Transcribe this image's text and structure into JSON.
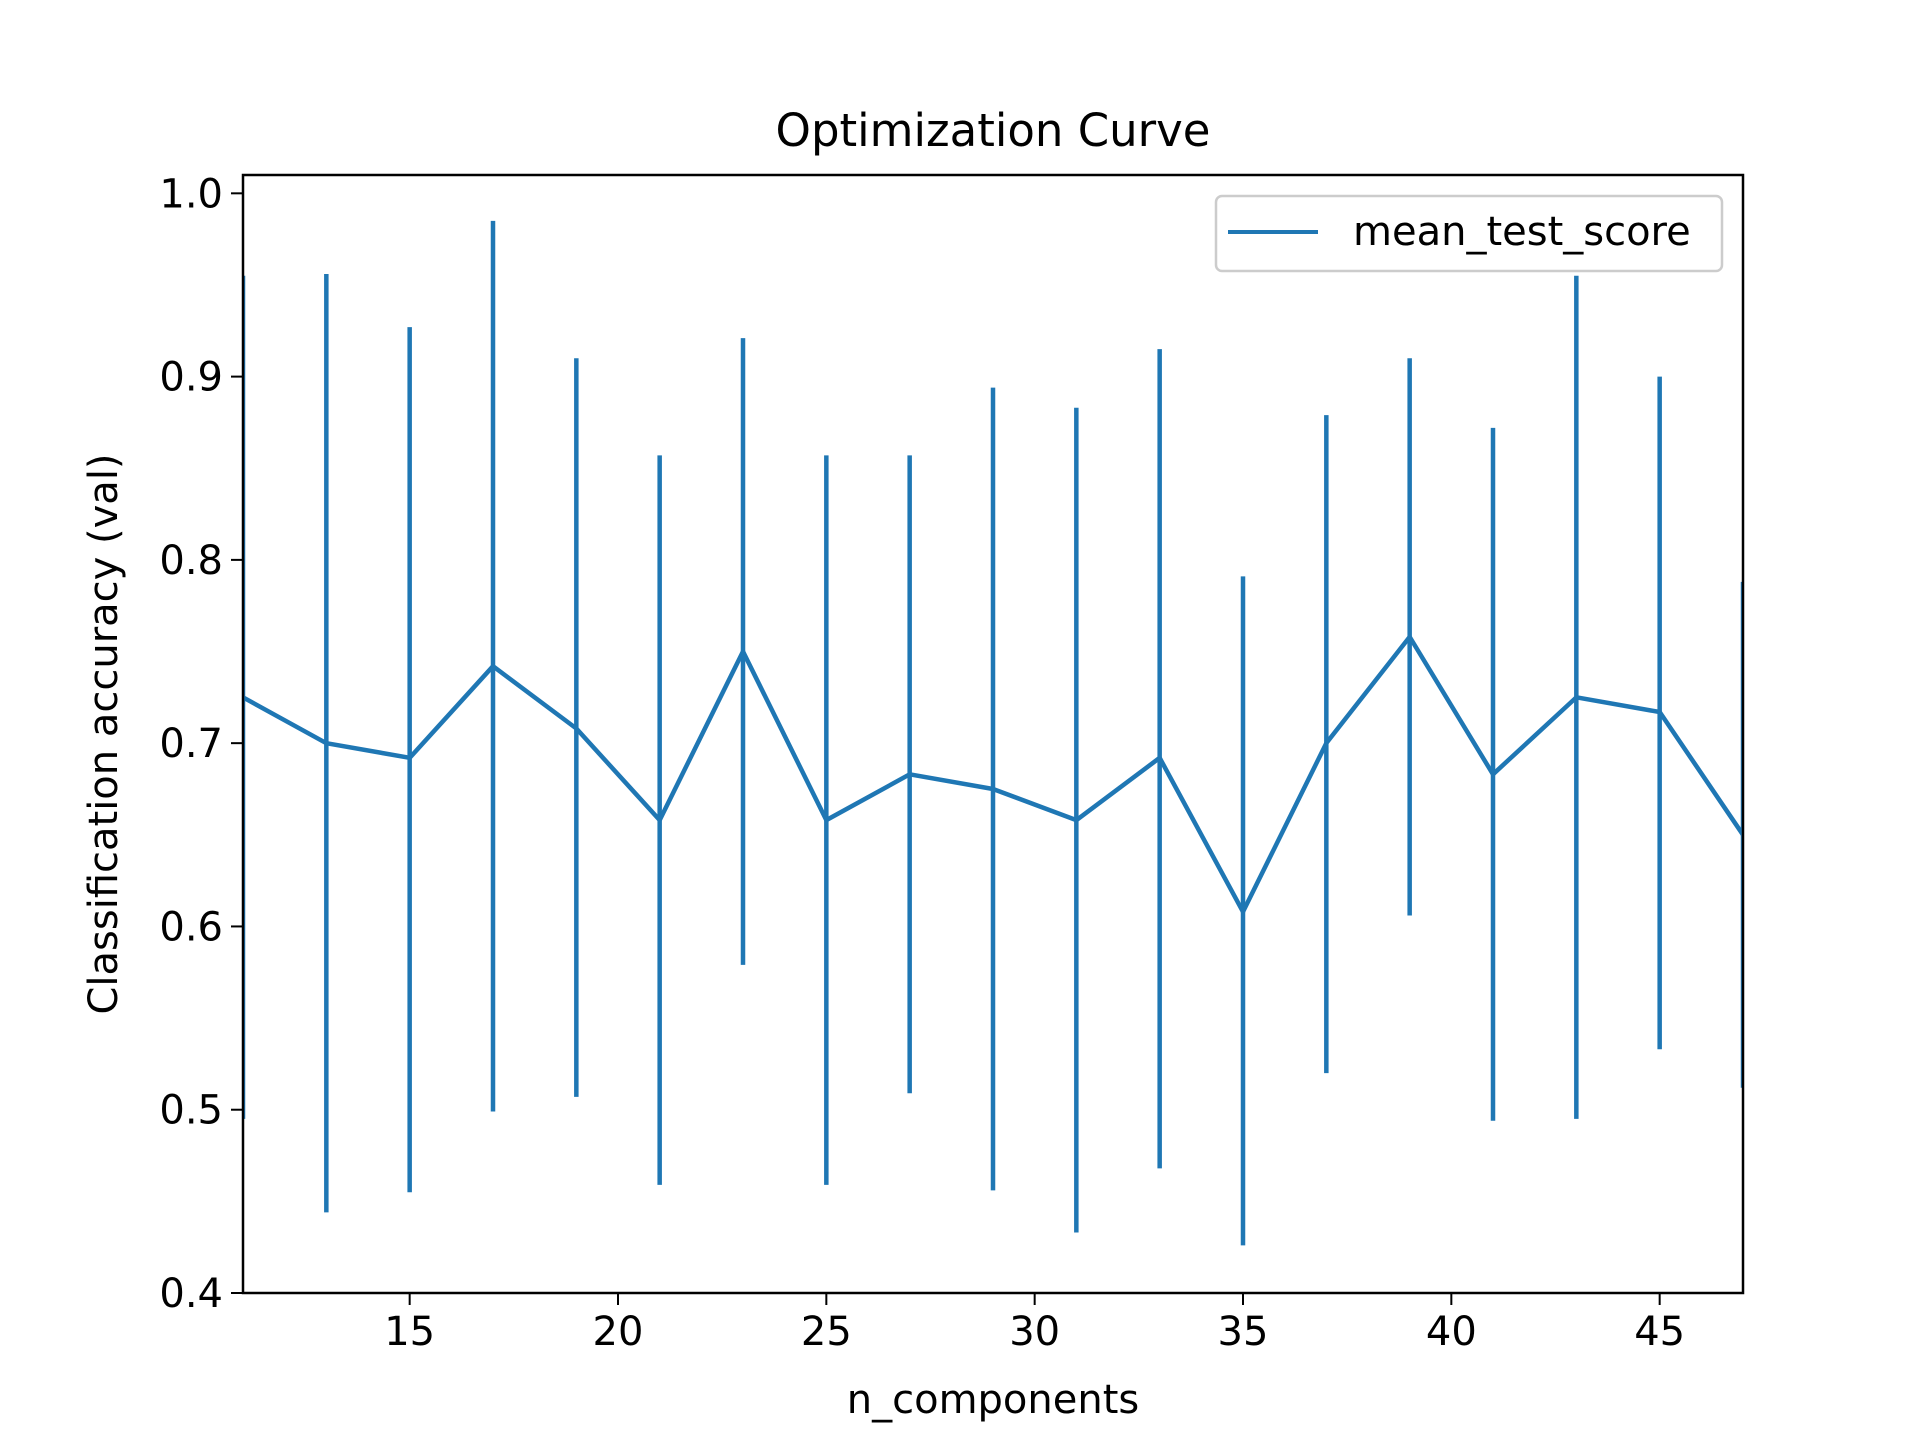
{
  "chart_data": {
    "type": "line",
    "title": "Optimization Curve",
    "xlabel": "n_components",
    "ylabel": "Classification accuracy (val)",
    "xlim": [
      11,
      47
    ],
    "ylim": [
      0.4,
      1.01
    ],
    "x_ticks": [
      15,
      20,
      25,
      30,
      35,
      40,
      45
    ],
    "y_ticks": [
      0.4,
      0.5,
      0.6,
      0.7,
      0.8,
      0.9,
      1.0
    ],
    "x_tick_labels": [
      "15",
      "20",
      "25",
      "30",
      "35",
      "40",
      "45"
    ],
    "y_tick_labels": [
      "0.4",
      "0.5",
      "0.6",
      "0.7",
      "0.8",
      "0.9",
      "1.0"
    ],
    "grid": false,
    "legend_position": "top-right",
    "series": [
      {
        "name": "mean_test_score",
        "color": "#1f77b4",
        "x": [
          11,
          13,
          15,
          17,
          19,
          21,
          23,
          25,
          27,
          29,
          31,
          33,
          35,
          37,
          39,
          41,
          43,
          45,
          47
        ],
        "y": [
          0.725,
          0.7,
          0.692,
          0.742,
          0.708,
          0.658,
          0.75,
          0.658,
          0.683,
          0.675,
          0.658,
          0.692,
          0.608,
          0.7,
          0.758,
          0.683,
          0.725,
          0.717,
          0.65
        ],
        "err_low": [
          0.495,
          0.444,
          0.455,
          0.499,
          0.507,
          0.459,
          0.579,
          0.459,
          0.509,
          0.456,
          0.433,
          0.468,
          0.426,
          0.52,
          0.606,
          0.494,
          0.495,
          0.533,
          0.512
        ],
        "err_high": [
          0.955,
          0.956,
          0.927,
          0.985,
          0.91,
          0.857,
          0.921,
          0.857,
          0.857,
          0.894,
          0.883,
          0.915,
          0.791,
          0.879,
          0.91,
          0.872,
          0.955,
          0.9,
          0.788
        ]
      }
    ]
  }
}
